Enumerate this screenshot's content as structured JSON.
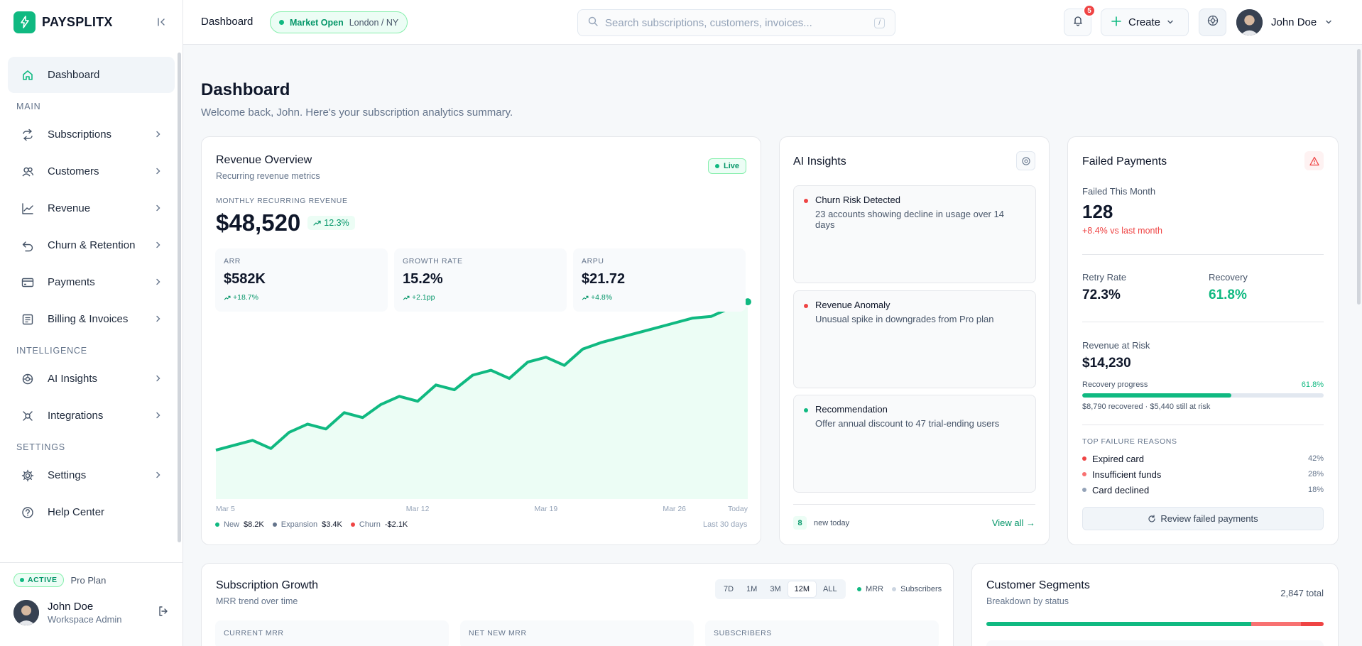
{
  "brand": {
    "name": "PAYSPLITX"
  },
  "sidebar": {
    "dashboard": "Dashboard",
    "sections": {
      "main": "MAIN",
      "intelligence": "INTELLIGENCE",
      "settings": "SETTINGS"
    },
    "main_items": [
      {
        "label": "Subscriptions",
        "icon": "repeat-icon"
      },
      {
        "label": "Customers",
        "icon": "users-icon"
      },
      {
        "label": "Revenue",
        "icon": "trend-chart-icon"
      },
      {
        "label": "Churn & Retention",
        "icon": "undo-icon"
      },
      {
        "label": "Payments",
        "icon": "credit-card-icon"
      },
      {
        "label": "Billing & Invoices",
        "icon": "invoice-icon"
      }
    ],
    "intel_items": [
      {
        "label": "AI Insights",
        "icon": "brain-icon"
      },
      {
        "label": "Integrations",
        "icon": "plug-icon"
      }
    ],
    "settings_items": [
      {
        "label": "Settings",
        "icon": "gear-icon"
      },
      {
        "label": "Help Center",
        "icon": "help-icon"
      }
    ],
    "plan": {
      "status": "ACTIVE",
      "name": "Pro Plan"
    },
    "user": {
      "name": "John Doe",
      "role": "Workspace Admin"
    }
  },
  "topbar": {
    "title": "Dashboard",
    "market_status": "Market Open",
    "market_location": "London / NY",
    "search_placeholder": "Search subscriptions, customers, invoices...",
    "search_shortcut": "/",
    "notifications": "5",
    "create_label": "Create",
    "user_name": "John Doe"
  },
  "page": {
    "title": "Dashboard",
    "subtitle": "Welcome back, John. Here's your subscription analytics summary."
  },
  "revenue": {
    "title": "Revenue Overview",
    "subtitle": "Recurring revenue metrics",
    "live": "Live",
    "mrr_label": "MONTHLY RECURRING REVENUE",
    "mrr_value": "$48,520",
    "mrr_delta": "12.3%",
    "kpis": [
      {
        "label": "ARR",
        "value": "$582K",
        "delta": "+18.7%"
      },
      {
        "label": "GROWTH RATE",
        "value": "15.2%",
        "delta": "+2.1pp"
      },
      {
        "label": "ARPU",
        "value": "$21.72",
        "delta": "+4.8%"
      }
    ],
    "legend": [
      {
        "name": "New",
        "value": "$8.2K",
        "color": "#10b981"
      },
      {
        "name": "Expansion",
        "value": "$3.4K",
        "color": "#64748b"
      },
      {
        "name": "Churn",
        "value": "-$2.1K",
        "color": "#ef4444"
      }
    ],
    "period": "Last 30 days"
  },
  "chart_data": {
    "type": "area",
    "x": [
      "Mar 1",
      "Mar 2",
      "Mar 3",
      "Mar 4",
      "Mar 5",
      "Mar 6",
      "Mar 7",
      "Mar 8",
      "Mar 9",
      "Mar 10",
      "Mar 11",
      "Mar 12",
      "Mar 13",
      "Mar 14",
      "Mar 15",
      "Mar 16",
      "Mar 17",
      "Mar 18",
      "Mar 19",
      "Mar 20",
      "Mar 21",
      "Mar 22",
      "Mar 23",
      "Mar 24",
      "Mar 25",
      "Mar 26",
      "Mar 27",
      "Mar 28",
      "Mar 29",
      "Mar 30"
    ],
    "tick_labels": [
      "Mar 5",
      "Mar 12",
      "Mar 19",
      "Mar 26",
      "Today"
    ],
    "series": [
      {
        "values": [
          30,
          33,
          36,
          31,
          41,
          46,
          43,
          53,
          50,
          58,
          63,
          60,
          70,
          67,
          76,
          79,
          74,
          84,
          87,
          82,
          92,
          96,
          99,
          102,
          105,
          108,
          111,
          112,
          117,
          121
        ]
      }
    ],
    "ylim": [
      0,
      135
    ],
    "grid": false
  },
  "insights": {
    "title": "AI Insights",
    "items": [
      {
        "title": "Churn Risk Detected",
        "text": "23 accounts showing decline in usage over 14 days",
        "color": "#ef4444"
      },
      {
        "title": "Revenue Anomaly",
        "text": "Unusual spike in downgrades from Pro plan",
        "color": "#ef4444"
      },
      {
        "title": "Recommendation",
        "text": "Offer annual discount to 47 trial-ending users",
        "color": "#10b981"
      }
    ],
    "new_count": "8",
    "new_label": "new today",
    "view_all": "View all →"
  },
  "failed": {
    "title": "Failed Payments",
    "month_label": "Failed This Month",
    "month_value": "128",
    "month_delta": "+8.4% vs last month",
    "retry_label": "Retry Rate",
    "retry_value": "72.3%",
    "recovery_label": "Recovery",
    "recovery_value": "61.8%",
    "risk_label": "Revenue at Risk",
    "risk_value": "$14,230",
    "progress_label": "Recovery progress",
    "progress_pct": "61.8%",
    "progress_fraction": 0.618,
    "progress_detail": "$8,790 recovered · $5,440 still at risk",
    "reasons_title": "TOP FAILURE REASONS",
    "reasons": [
      {
        "label": "Expired card",
        "pct": "42%",
        "color": "#ef4444"
      },
      {
        "label": "Insufficient funds",
        "pct": "28%",
        "color": "#f87171"
      },
      {
        "label": "Card declined",
        "pct": "18%",
        "color": "#94a3b8"
      }
    ],
    "review_label": "Review failed payments"
  },
  "growth": {
    "title": "Subscription Growth",
    "subtitle": "MRR trend over time",
    "ranges": [
      "7D",
      "1M",
      "3M",
      "12M",
      "ALL"
    ],
    "selected_range": "12M",
    "legend_mrr": "MRR",
    "legend_subs": "Subscribers",
    "kpis": [
      "CURRENT MRR",
      "NET NEW MRR",
      "SUBSCRIBERS"
    ]
  },
  "segments": {
    "title": "Customer Segments",
    "subtitle": "Breakdown by status",
    "total": "2,847 total",
    "shares": [
      {
        "fraction": 0.785,
        "color": "#10b981"
      },
      {
        "fraction": 0.147,
        "color": "#f87171"
      },
      {
        "fraction": 0.068,
        "color": "#ef4444"
      }
    ]
  }
}
